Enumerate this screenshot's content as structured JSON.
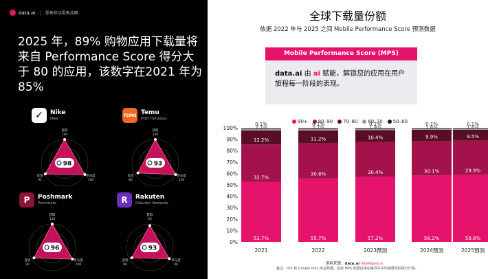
{
  "brand": {
    "name": "data.ai",
    "subtitle": "零售移动零售战略"
  },
  "headline": "2025 年，89% 购物应用下载量将来自 Performance Score 得分大于 80 的应用，该数字在2021 年为 85%",
  "apps": [
    {
      "name": "Nike",
      "publisher": "Nike",
      "score": "98",
      "top_label": "获取",
      "top_value": "100",
      "left_label": "变现",
      "left_value": "95",
      "right_label": "参与度",
      "right_value": "100",
      "icon": "nike-swoosh-icon",
      "icon_bg": "#ffffff",
      "levels": [
        1.0,
        0.95,
        1.0
      ]
    },
    {
      "name": "Temu",
      "publisher": "PDD Holdings",
      "score": "93",
      "top_label": "获取",
      "top_value": "100",
      "left_label": "变现",
      "left_value": "86",
      "right_label": "参与度",
      "right_value": "100",
      "icon": "temu-logo-icon",
      "icon_bg": "#f26722",
      "levels": [
        1.0,
        0.86,
        1.0
      ]
    },
    {
      "name": "Poshmark",
      "publisher": "Poshmark",
      "score": "96",
      "top_label": "获取",
      "top_value": "100",
      "left_label": "变现",
      "left_value": "90",
      "right_label": "参与度",
      "right_value": "100",
      "icon": "poshmark-p-icon",
      "icon_bg": "#8a1538",
      "levels": [
        1.0,
        0.9,
        1.0
      ]
    },
    {
      "name": "Rakuten",
      "publisher": "Rakuten Rewards",
      "score": "93",
      "top_label": "获取",
      "top_value": "93",
      "left_label": "变现",
      "left_value": "89",
      "right_label": "参与度",
      "right_value": "96",
      "icon": "rakuten-r-icon",
      "icon_bg": "#6b2fbe",
      "levels": [
        0.93,
        0.89,
        0.96
      ]
    }
  ],
  "title": "全球下载量份额",
  "subtitle": "依据 2022 年与 2025 之间 Mobile Performance Score 预测数据",
  "mps": {
    "header": "Mobile Performance Score (MPS)",
    "text_brand": "data.ai",
    "text_mid": " 由 ",
    "text_ai": "ai",
    "text_rest": " 赋能，解锁您的应用在用户旅程每一阶段的表现。"
  },
  "chart_data": {
    "type": "bar",
    "stacked": true,
    "categories": [
      "2021",
      "2022",
      "2023预测",
      "2024预测",
      "2025预测"
    ],
    "series": [
      {
        "name": "90+",
        "color": "#e5136b",
        "values": [
          52.7,
          55.7,
          57.2,
          58.2,
          58.8
        ],
        "labels": [
          "52.7%",
          "55.7%",
          "57.2%",
          "58.2%",
          "58.8%"
        ]
      },
      {
        "name": "80–90",
        "color": "#a3124a",
        "values": [
          32.7,
          30.8,
          30.4,
          30.1,
          29.9
        ],
        "labels": [
          "32.7%",
          "30.8%",
          "30.4%",
          "30.1%",
          "29.9%"
        ]
      },
      {
        "name": "70–80",
        "color": "#5a0d26",
        "values": [
          12.2,
          11.2,
          10.4,
          9.9,
          9.5
        ],
        "labels": [
          "12.2%",
          "11.2%",
          "10.4%",
          "9.9%",
          "9.5%"
        ]
      },
      {
        "name": "60–70",
        "color": "#9a9a9a",
        "values": [
          2.2,
          2.2,
          1.9,
          1.6,
          1.6
        ],
        "labels": [
          "2.2%",
          "2.2%",
          "1.9%",
          "1.6%",
          "1.6%"
        ]
      },
      {
        "name": "50–60",
        "color": "#1a1a1a",
        "values": [
          0.1,
          0.1,
          0.1,
          0.1,
          0.1
        ],
        "labels": [
          "0.1%",
          "0.1%",
          "0.1%",
          "0.1%",
          "0.1%"
        ]
      }
    ],
    "y_ticks": [
      "0%",
      "10%",
      "20%",
      "30%",
      "40%",
      "50%",
      "60%",
      "70%",
      "80%",
      "90%",
      "100%"
    ],
    "ylim": [
      0,
      100
    ]
  },
  "source": {
    "prefix": "资料来源：",
    "brand": "data.ai",
    "intel": " Intelligence"
  },
  "note": "备注：iOS 和 Google Play 综合数据。应用 MPS 依据应用在每月中平均每周类别得分计算。"
}
